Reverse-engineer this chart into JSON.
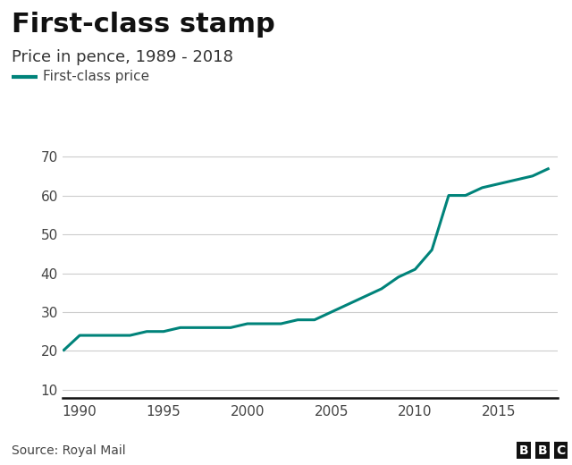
{
  "title": "First-class stamp",
  "subtitle": "Price in pence, 1989 - 2018",
  "legend_label": "First-class price",
  "source": "Source: Royal Mail",
  "bbc_label": "BBC",
  "line_color": "#00837A",
  "background_color": "#ffffff",
  "years": [
    1989,
    1990,
    1991,
    1992,
    1993,
    1994,
    1995,
    1996,
    1997,
    1998,
    1999,
    2000,
    2001,
    2002,
    2003,
    2004,
    2005,
    2006,
    2007,
    2008,
    2009,
    2010,
    2011,
    2012,
    2013,
    2014,
    2015,
    2016,
    2017,
    2018
  ],
  "prices": [
    20,
    24,
    24,
    24,
    24,
    25,
    25,
    26,
    26,
    26,
    26,
    27,
    27,
    27,
    28,
    28,
    30,
    32,
    34,
    36,
    39,
    41,
    46,
    60,
    60,
    62,
    63,
    64,
    65,
    67
  ],
  "ylim": [
    8,
    72
  ],
  "xlim": [
    1989,
    2018.5
  ],
  "yticks": [
    10,
    20,
    30,
    40,
    50,
    60,
    70
  ],
  "xticks": [
    1990,
    1995,
    2000,
    2005,
    2010,
    2015
  ],
  "line_width": 2.2,
  "grid_color": "#cccccc",
  "tick_color": "#444444",
  "bottom_line_color": "#111111",
  "title_fontsize": 22,
  "subtitle_fontsize": 13,
  "legend_fontsize": 11,
  "tick_fontsize": 11,
  "source_fontsize": 10
}
